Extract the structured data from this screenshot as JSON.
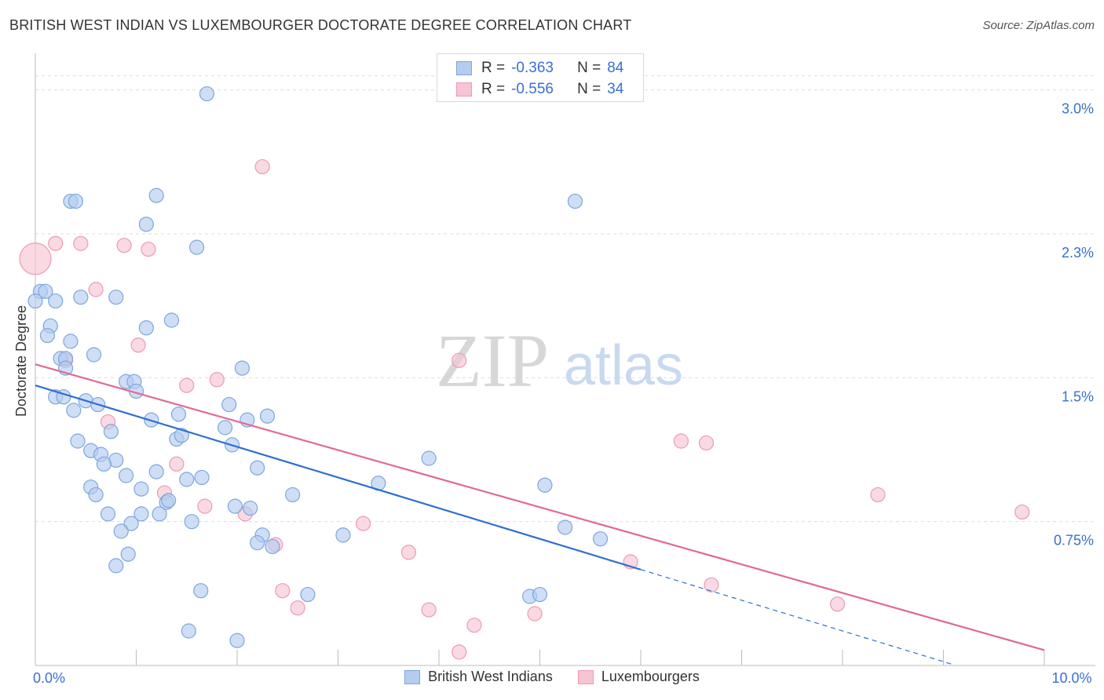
{
  "header": {
    "title": "BRITISH WEST INDIAN VS LUXEMBOURGER DOCTORATE DEGREE CORRELATION CHART",
    "source": "Source: ZipAtlas.com"
  },
  "watermark": {
    "zip": "ZIP",
    "atlas": "atlas"
  },
  "legend": {
    "rows": [
      {
        "r_label": "R =",
        "r_value": "-0.363",
        "n_label": "N =",
        "n_value": "84"
      },
      {
        "r_label": "R =",
        "r_value": "-0.556",
        "n_label": "N =",
        "n_value": "34"
      }
    ]
  },
  "bottom_legend": {
    "items": [
      {
        "label": "British West Indians"
      },
      {
        "label": "Luxembourgers"
      }
    ]
  },
  "colors": {
    "blue_fill": "#b4cdef",
    "blue_stroke": "#7ea6de",
    "blue_line": "#2f6fd0",
    "pink_fill": "#f6c4d3",
    "pink_stroke": "#ec9bb5",
    "pink_line": "#e06a92",
    "axis_label": "#3a6fd1",
    "grid": "#dddddd"
  },
  "chart_data": {
    "type": "scatter",
    "title": "BRITISH WEST INDIAN VS LUXEMBOURGER DOCTORATE DEGREE CORRELATION CHART",
    "xlabel": "",
    "ylabel": "Doctorate Degree",
    "xlim": [
      0,
      10
    ],
    "ylim": [
      0,
      3.15
    ],
    "x_tick_labels": [
      {
        "value": 0,
        "label": "0.0%"
      },
      {
        "value": 10,
        "label": "10.0%"
      }
    ],
    "y_ticks": [
      {
        "value": 0.75,
        "label": "0.75%"
      },
      {
        "value": 1.5,
        "label": "1.5%"
      },
      {
        "value": 2.25,
        "label": "2.3%"
      },
      {
        "value": 3.0,
        "label": "3.0%"
      }
    ],
    "grid": true,
    "legend_position": "top-center",
    "series": [
      {
        "name": "British West Indians",
        "r": -0.363,
        "n": 84,
        "trend": {
          "x0": 0,
          "y0": 1.46,
          "x1": 6.0,
          "y1": 0.5,
          "dash_to_x": 9.1
        },
        "points": [
          [
            1.7,
            2.98
          ],
          [
            1.2,
            2.45
          ],
          [
            0.35,
            2.42
          ],
          [
            0.4,
            2.42
          ],
          [
            5.35,
            2.42
          ],
          [
            1.1,
            2.3
          ],
          [
            1.6,
            2.18
          ],
          [
            0.05,
            1.95
          ],
          [
            0.1,
            1.95
          ],
          [
            0.0,
            1.9
          ],
          [
            0.2,
            1.9
          ],
          [
            0.45,
            1.92
          ],
          [
            0.8,
            1.92
          ],
          [
            0.15,
            1.77
          ],
          [
            1.1,
            1.76
          ],
          [
            1.35,
            1.8
          ],
          [
            0.12,
            1.72
          ],
          [
            0.35,
            1.69
          ],
          [
            0.25,
            1.6
          ],
          [
            0.3,
            1.6
          ],
          [
            0.58,
            1.62
          ],
          [
            0.3,
            1.55
          ],
          [
            2.05,
            1.55
          ],
          [
            0.9,
            1.48
          ],
          [
            0.98,
            1.48
          ],
          [
            1.0,
            1.43
          ],
          [
            0.2,
            1.4
          ],
          [
            0.28,
            1.4
          ],
          [
            0.5,
            1.38
          ],
          [
            0.62,
            1.36
          ],
          [
            1.92,
            1.36
          ],
          [
            0.38,
            1.33
          ],
          [
            1.15,
            1.28
          ],
          [
            1.42,
            1.31
          ],
          [
            1.88,
            1.24
          ],
          [
            2.1,
            1.28
          ],
          [
            2.3,
            1.3
          ],
          [
            0.75,
            1.22
          ],
          [
            1.4,
            1.18
          ],
          [
            1.45,
            1.2
          ],
          [
            0.42,
            1.17
          ],
          [
            1.95,
            1.15
          ],
          [
            0.55,
            1.12
          ],
          [
            0.65,
            1.1
          ],
          [
            3.9,
            1.08
          ],
          [
            0.8,
            1.07
          ],
          [
            0.68,
            1.05
          ],
          [
            2.2,
            1.03
          ],
          [
            1.2,
            1.01
          ],
          [
            0.9,
            0.99
          ],
          [
            1.5,
            0.97
          ],
          [
            1.65,
            0.98
          ],
          [
            3.4,
            0.95
          ],
          [
            5.05,
            0.94
          ],
          [
            0.55,
            0.93
          ],
          [
            1.05,
            0.92
          ],
          [
            0.6,
            0.89
          ],
          [
            2.55,
            0.89
          ],
          [
            1.3,
            0.85
          ],
          [
            1.32,
            0.86
          ],
          [
            1.98,
            0.83
          ],
          [
            2.13,
            0.82
          ],
          [
            0.72,
            0.79
          ],
          [
            1.05,
            0.79
          ],
          [
            1.23,
            0.79
          ],
          [
            0.95,
            0.74
          ],
          [
            1.55,
            0.75
          ],
          [
            5.25,
            0.72
          ],
          [
            0.85,
            0.7
          ],
          [
            3.05,
            0.68
          ],
          [
            2.25,
            0.68
          ],
          [
            5.6,
            0.66
          ],
          [
            2.2,
            0.64
          ],
          [
            2.35,
            0.62
          ],
          [
            0.92,
            0.58
          ],
          [
            0.8,
            0.52
          ],
          [
            1.64,
            0.39
          ],
          [
            2.7,
            0.37
          ],
          [
            4.9,
            0.36
          ],
          [
            5.0,
            0.37
          ],
          [
            1.52,
            0.18
          ],
          [
            2.0,
            0.13
          ]
        ]
      },
      {
        "name": "Luxembourgers",
        "r": -0.556,
        "n": 34,
        "trend": {
          "x0": 0,
          "y0": 1.57,
          "x1": 10.0,
          "y1": 0.08
        },
        "points": [
          [
            0.0,
            2.12,
            "large"
          ],
          [
            0.2,
            2.2
          ],
          [
            0.45,
            2.2
          ],
          [
            0.88,
            2.19
          ],
          [
            1.12,
            2.17
          ],
          [
            2.25,
            2.6
          ],
          [
            0.6,
            1.96
          ],
          [
            1.02,
            1.67
          ],
          [
            0.3,
            1.59
          ],
          [
            4.2,
            1.59
          ],
          [
            1.5,
            1.46
          ],
          [
            1.8,
            1.49
          ],
          [
            0.72,
            1.27
          ],
          [
            6.4,
            1.17
          ],
          [
            6.65,
            1.16
          ],
          [
            1.4,
            1.05
          ],
          [
            1.28,
            0.9
          ],
          [
            8.35,
            0.89
          ],
          [
            1.68,
            0.83
          ],
          [
            2.08,
            0.79
          ],
          [
            9.78,
            0.8
          ],
          [
            3.25,
            0.74
          ],
          [
            2.38,
            0.63
          ],
          [
            3.7,
            0.59
          ],
          [
            5.9,
            0.54
          ],
          [
            2.45,
            0.39
          ],
          [
            6.7,
            0.42
          ],
          [
            2.6,
            0.3
          ],
          [
            3.9,
            0.29
          ],
          [
            4.95,
            0.27
          ],
          [
            7.95,
            0.32
          ],
          [
            4.35,
            0.21
          ],
          [
            4.2,
            0.07
          ]
        ]
      }
    ]
  }
}
